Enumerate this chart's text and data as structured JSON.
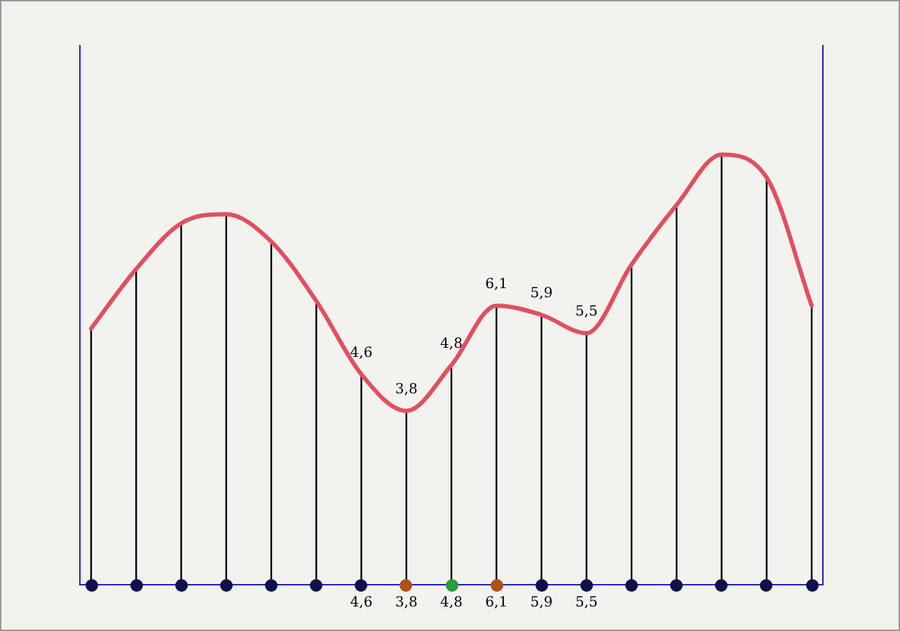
{
  "chart_data": {
    "type": "line",
    "categories": [
      null,
      null,
      null,
      null,
      null,
      null,
      null,
      null,
      null,
      null,
      null,
      null,
      null,
      null,
      null,
      null,
      null
    ],
    "series": [
      {
        "color": "#e05060",
        "colors": [
          "#10104a",
          "#10104a",
          "#10104a",
          "#10104a",
          "#10104a",
          "#10104a",
          "#10104a",
          "#b0501a",
          "#2a9a3a",
          "#b0501a",
          "#10104a",
          "#10104a",
          "#10104a",
          "#10104a",
          "#10104a",
          "#10104a",
          "#10104a"
        ],
        "values": [
          5.6,
          6.9,
          7.9,
          8.1,
          7.5,
          6.2,
          4.6,
          3.8,
          4.8,
          6.1,
          5.9,
          5.5,
          7.0,
          8.3,
          9.4,
          8.9,
          6.1
        ],
        "value_labels": [
          null,
          null,
          null,
          null,
          null,
          null,
          "4,6",
          "3,8",
          "4,8",
          "6,1",
          "5,9",
          "5,5",
          null,
          null,
          null,
          null,
          null
        ]
      }
    ],
    "ylim": [
      0,
      11.8
    ],
    "tick_labels": false,
    "grid": "x",
    "legend": false
  }
}
